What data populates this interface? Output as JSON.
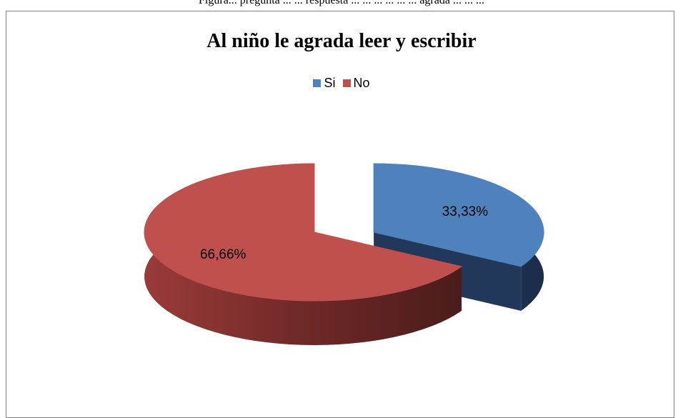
{
  "header_fragment": "Figura... pregunta ... ... respuesta ... ... ... ... ... ... agrada ... ... ...",
  "chart_data": {
    "type": "pie",
    "title": "Al niño le agrada leer y escribir",
    "legend_position": "top",
    "categories": [
      "Si",
      "No"
    ],
    "values": [
      33.33,
      66.66
    ],
    "labels": [
      "33,33%",
      "66,66%"
    ],
    "colors": [
      "#4F81BD",
      "#C0504D"
    ],
    "exploded": "Si",
    "style": "3d"
  }
}
